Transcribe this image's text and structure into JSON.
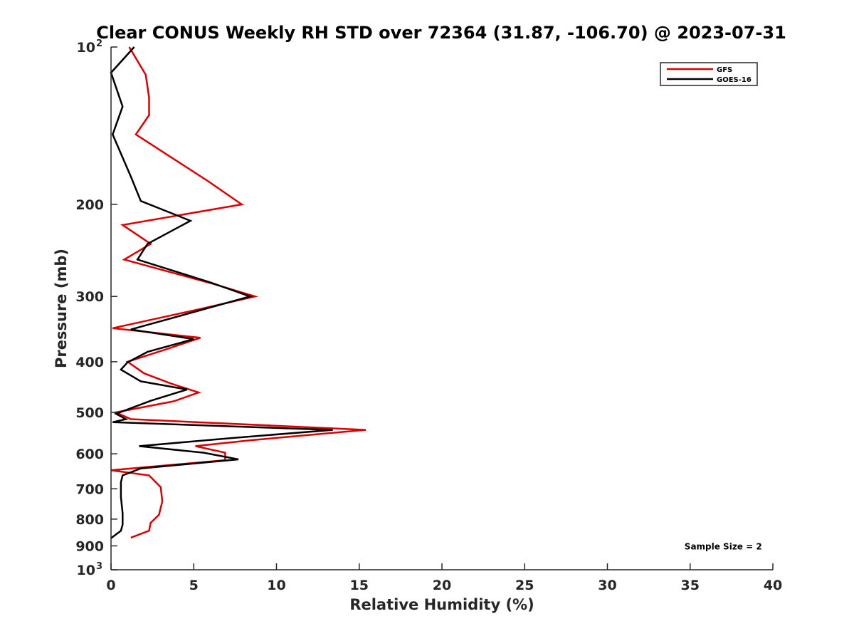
{
  "chart_data": {
    "type": "line",
    "title": "Clear CONUS Weekly RH STD over 72364 (31.87, -106.70) @ 2023-07-31",
    "xlabel": "Relative Humidity (%)",
    "ylabel": "Pressure (mb)",
    "xlim": [
      0,
      40
    ],
    "ylim": [
      100,
      1000
    ],
    "yscale": "log",
    "yreversed": true,
    "grid": false,
    "x_ticks": [
      "0",
      "5",
      "10",
      "15",
      "20",
      "25",
      "30",
      "35",
      "40"
    ],
    "y_ticks": [
      {
        "value": 100,
        "label": "10",
        "sup": "2"
      },
      {
        "value": 200,
        "label": "200"
      },
      {
        "value": 300,
        "label": "300"
      },
      {
        "value": 400,
        "label": "400"
      },
      {
        "value": 500,
        "label": "500"
      },
      {
        "value": 600,
        "label": "600"
      },
      {
        "value": 700,
        "label": "700"
      },
      {
        "value": 800,
        "label": "800"
      },
      {
        "value": 900,
        "label": "900"
      },
      {
        "value": 1000,
        "label": "10",
        "sup": "3"
      }
    ],
    "legend_position": "top-right",
    "series": [
      {
        "name": "GFS",
        "color": "#dd0000",
        "points": [
          [
            1.1,
            100
          ],
          [
            2.1,
            113
          ],
          [
            2.3,
            125
          ],
          [
            2.3,
            135
          ],
          [
            1.5,
            147
          ],
          [
            5.8,
            180
          ],
          [
            7.9,
            200
          ],
          [
            0.7,
            219
          ],
          [
            2.4,
            238
          ],
          [
            0.8,
            255
          ],
          [
            6.2,
            284
          ],
          [
            8.7,
            300
          ],
          [
            5.4,
            317
          ],
          [
            0.1,
            345
          ],
          [
            5.4,
            360
          ],
          [
            3.4,
            378
          ],
          [
            1.0,
            400
          ],
          [
            2.0,
            421
          ],
          [
            3.6,
            440
          ],
          [
            5.3,
            458
          ],
          [
            3.8,
            476
          ],
          [
            0.3,
            500
          ],
          [
            1.2,
            515
          ],
          [
            15.4,
            540
          ],
          [
            8.5,
            565
          ],
          [
            5.1,
            580
          ],
          [
            6.9,
            597
          ],
          [
            6.9,
            617
          ],
          [
            0.0,
            645
          ],
          [
            2.3,
            660
          ],
          [
            3.0,
            695
          ],
          [
            3.1,
            740
          ],
          [
            2.9,
            785
          ],
          [
            2.4,
            813
          ],
          [
            2.3,
            842
          ],
          [
            1.2,
            868
          ]
        ]
      },
      {
        "name": "GOES-16",
        "color": "#000000",
        "points": [
          [
            1.4,
            100
          ],
          [
            0.0,
            112
          ],
          [
            0.7,
            130
          ],
          [
            0.1,
            147
          ],
          [
            1.2,
            177
          ],
          [
            1.8,
            197
          ],
          [
            4.8,
            215
          ],
          [
            2.2,
            238
          ],
          [
            1.6,
            255
          ],
          [
            6.0,
            282
          ],
          [
            8.4,
            300
          ],
          [
            1.2,
            347
          ],
          [
            5.0,
            362
          ],
          [
            2.2,
            383
          ],
          [
            1.0,
            401
          ],
          [
            0.6,
            414
          ],
          [
            1.8,
            436
          ],
          [
            4.6,
            452
          ],
          [
            2.4,
            475
          ],
          [
            0.3,
            503
          ],
          [
            0.9,
            515
          ],
          [
            0.1,
            522
          ],
          [
            13.4,
            540
          ],
          [
            7.2,
            560
          ],
          [
            1.7,
            580
          ],
          [
            5.6,
            597
          ],
          [
            7.7,
            615
          ],
          [
            1.8,
            640
          ],
          [
            0.7,
            660
          ],
          [
            0.6,
            680
          ],
          [
            0.6,
            725
          ],
          [
            0.7,
            780
          ],
          [
            0.7,
            820
          ],
          [
            0.6,
            842
          ],
          [
            0.0,
            870
          ]
        ]
      }
    ],
    "annotations": [
      {
        "text": "Sample Size = 2",
        "x": 37,
        "y": 900
      }
    ]
  }
}
